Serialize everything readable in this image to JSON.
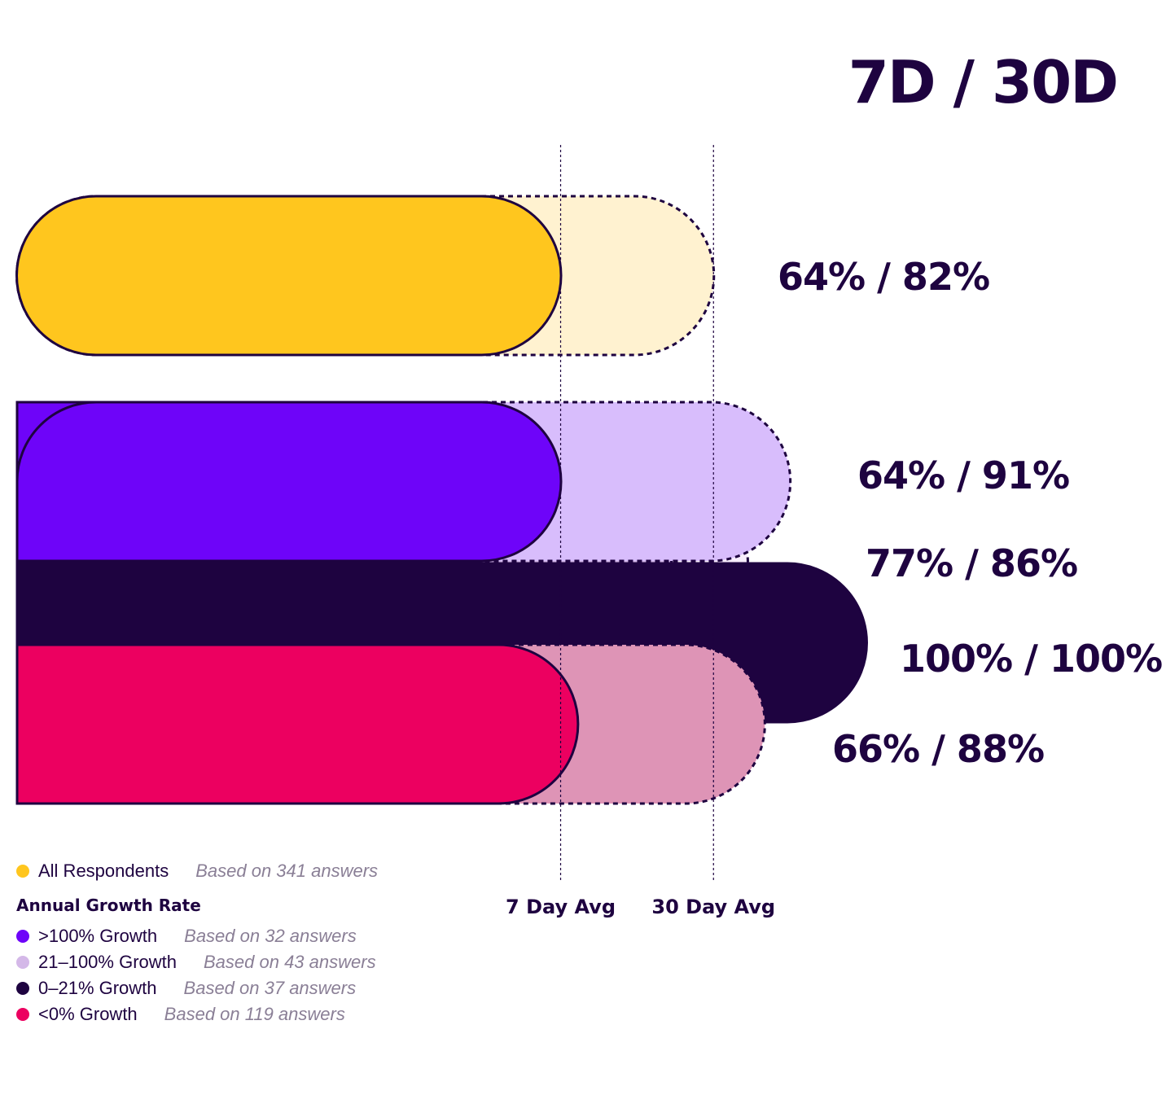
{
  "chart_data": {
    "type": "bar",
    "title": "7D / 30D",
    "x_scale_max": 100,
    "reference_lines": [
      {
        "label": "7 Day Avg"
      },
      {
        "label": "30 Day Avg"
      }
    ],
    "series": [
      {
        "name": "All Respondents",
        "note": "Based on 341 answers",
        "d7": 64,
        "d30": 82,
        "label": "64% / 82%",
        "color": "#FFC61E",
        "light_color": "#FFF2D0"
      },
      {
        "name": ">100% Growth",
        "note": "Based on 32 answers",
        "d7": 64,
        "d30": 91,
        "label": "64% / 91%",
        "color": "#6E04F9",
        "light_color": "#D8BDFC"
      },
      {
        "name": "21–100% Growth",
        "note": "Based on 43 answers",
        "d7": 77,
        "d30": 86,
        "label": "77% / 86%",
        "color": "#D4B8E8",
        "light_color": "#F8EEFC"
      },
      {
        "name": "0–21% Growth",
        "note": "Based on 37 answers",
        "d7": 100,
        "d30": 100,
        "label": "100% / 100%",
        "color": "#1E0340",
        "light_color": "#1E0340"
      },
      {
        "name": "<0% Growth",
        "note": "Based on 119 answers",
        "d7": 66,
        "d30": 88,
        "label": "66% / 88%",
        "color": "#EC0060",
        "light_color": "#DE94B6"
      }
    ]
  },
  "legend": {
    "heading": "Annual Growth Rate"
  }
}
